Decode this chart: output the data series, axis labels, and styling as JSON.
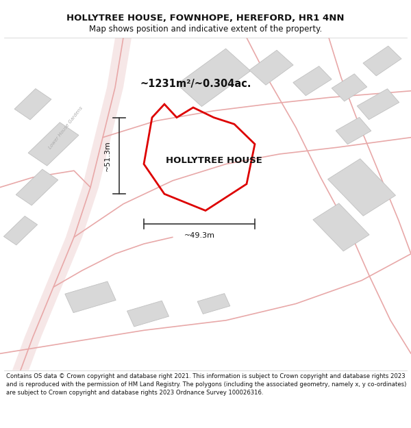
{
  "title": "HOLLYTREE HOUSE, FOWNHOPE, HEREFORD, HR1 4NN",
  "subtitle": "Map shows position and indicative extent of the property.",
  "property_label": "HOLLYTREE HOUSE",
  "area_label": "~1231m²/~0.304ac.",
  "dim_horizontal": "~49.3m",
  "dim_vertical": "~51.3m",
  "footer": "Contains OS data © Crown copyright and database right 2021. This information is subject to Crown copyright and database rights 2023 and is reproduced with the permission of HM Land Registry. The polygons (including the associated geometry, namely x, y co-ordinates) are subject to Crown copyright and database rights 2023 Ordnance Survey 100026316.",
  "bg_color": "#ffffff",
  "map_bg": "#f8f7f5",
  "plot_color": "#dd0000",
  "road_color": "#e8a8a8",
  "road_lw": 1.2,
  "building_color": "#d8d8d8",
  "building_edge": "#c0c0c0",
  "text_dark": "#111111",
  "text_gray": "#aaaaaa",
  "street_label": "Lower House Gardens"
}
